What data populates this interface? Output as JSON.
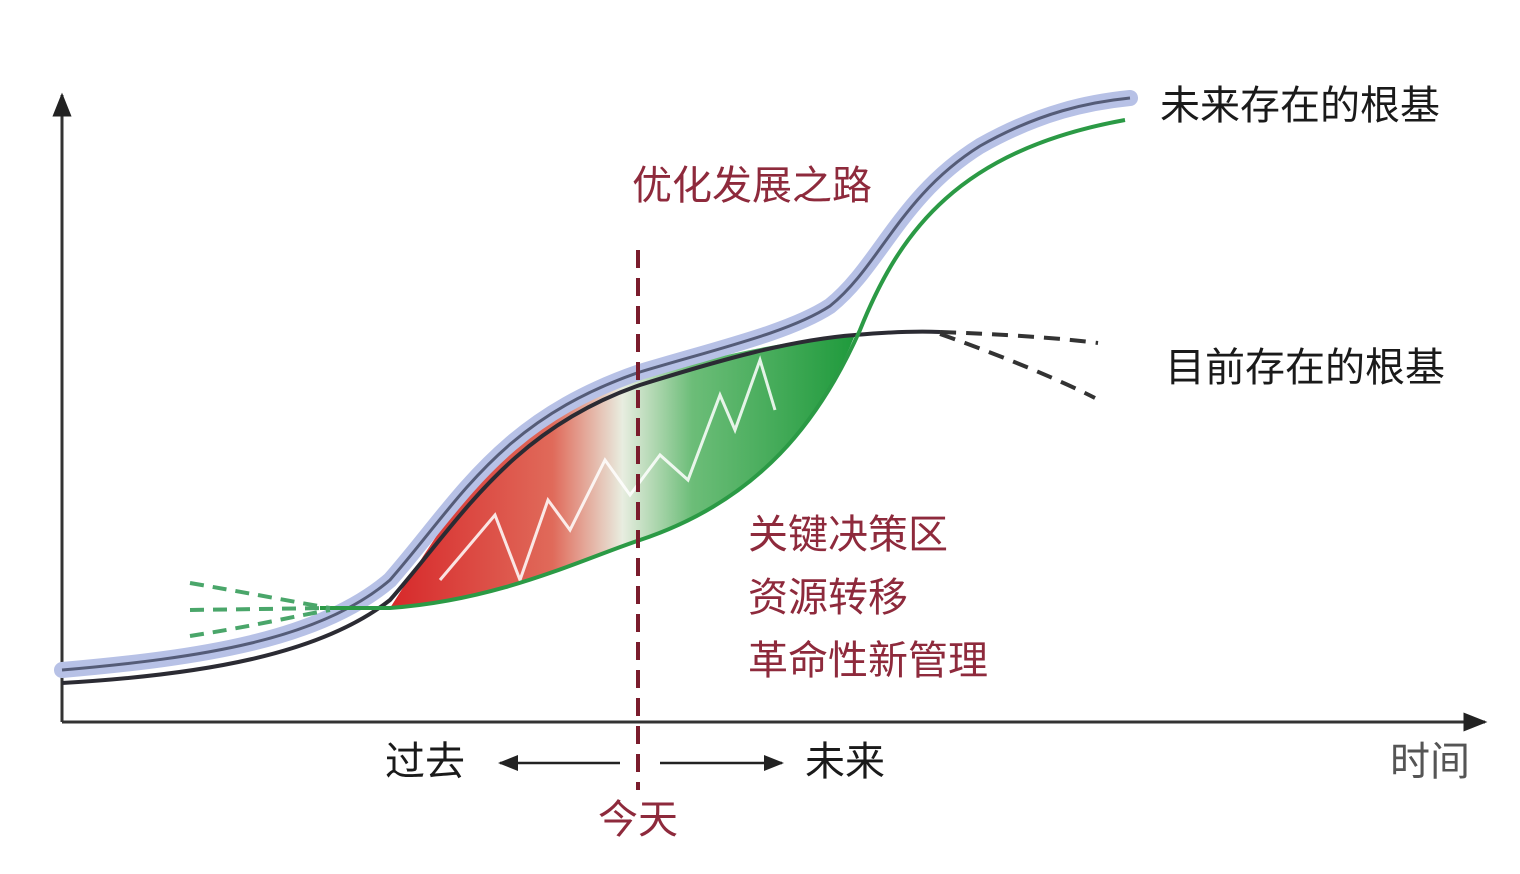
{
  "diagram": {
    "curve_labels": {
      "future_foundation": "未来存在的根基",
      "current_foundation": "目前存在的根基"
    },
    "optimization_label": "优化发展之路",
    "zone_labels": [
      "关键决策区",
      "资源转移",
      "革命性新管理"
    ],
    "axis": {
      "past": "过去",
      "future": "未来",
      "time": "时间",
      "today": "今天"
    }
  }
}
